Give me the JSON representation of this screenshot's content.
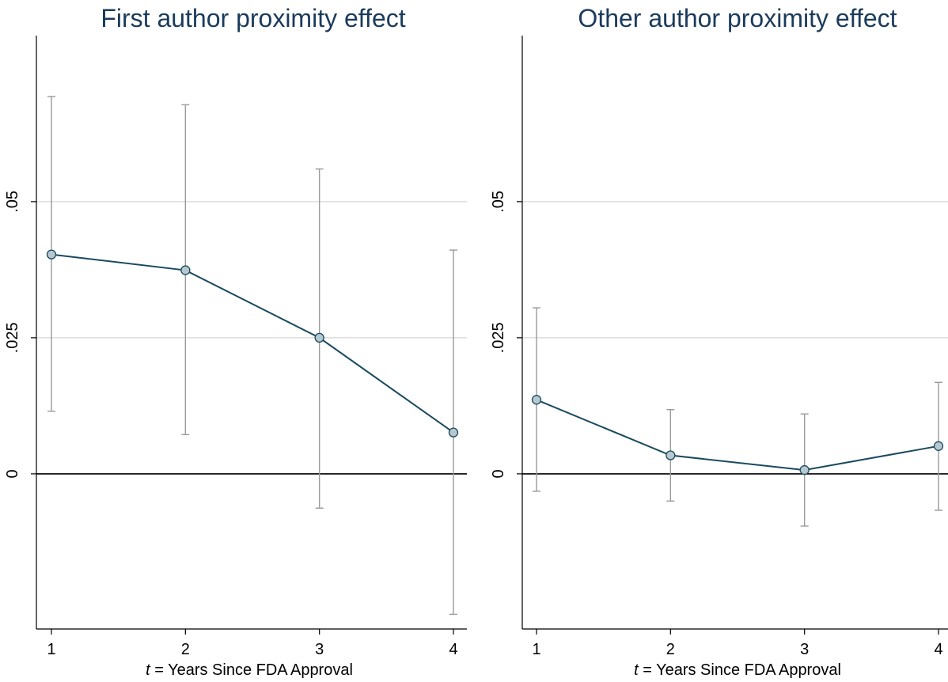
{
  "colors": {
    "line": "#1a4a5e",
    "marker_fill": "#b7c8d1",
    "error_bar": "#9a9a9a",
    "grid": "#dddddd",
    "title": "#1a3b5c"
  },
  "chart_data": [
    {
      "type": "line",
      "title": "First author proximity effect",
      "xlabel_italic": "t",
      "xlabel_rest": " = Years Since FDA Approval",
      "ylabel": "",
      "x": [
        1,
        2,
        3,
        4
      ],
      "xticks": [
        "1",
        "2",
        "3",
        "4"
      ],
      "yticks": [
        {
          "value": 0,
          "label": "0"
        },
        {
          "value": 0.025,
          "label": ".025"
        },
        {
          "value": 0.05,
          "label": ".05"
        }
      ],
      "ylim": [
        -0.0285,
        0.0805
      ],
      "grid": true,
      "series": [
        {
          "values": [
            0.0403,
            0.0374,
            0.025,
            0.0076
          ],
          "ci_low": [
            0.0115,
            0.0072,
            -0.0063,
            -0.0258
          ],
          "ci_high": [
            0.0693,
            0.0678,
            0.056,
            0.0411
          ]
        }
      ]
    },
    {
      "type": "line",
      "title": "Other author proximity effect",
      "xlabel_italic": "t",
      "xlabel_rest": " = Years Since FDA Approval",
      "ylabel": "",
      "x": [
        1,
        2,
        3,
        4
      ],
      "xticks": [
        "1",
        "2",
        "3",
        "4"
      ],
      "yticks": [
        {
          "value": 0,
          "label": "0"
        },
        {
          "value": 0.025,
          "label": ".025"
        },
        {
          "value": 0.05,
          "label": ".05"
        }
      ],
      "ylim": [
        -0.0285,
        0.0805
      ],
      "grid": true,
      "series": [
        {
          "values": [
            0.0136,
            0.0034,
            0.0007,
            0.0051
          ],
          "ci_low": [
            -0.0032,
            -0.005,
            -0.0096,
            -0.0067
          ],
          "ci_high": [
            0.0305,
            0.0118,
            0.011,
            0.0168
          ]
        }
      ]
    }
  ]
}
